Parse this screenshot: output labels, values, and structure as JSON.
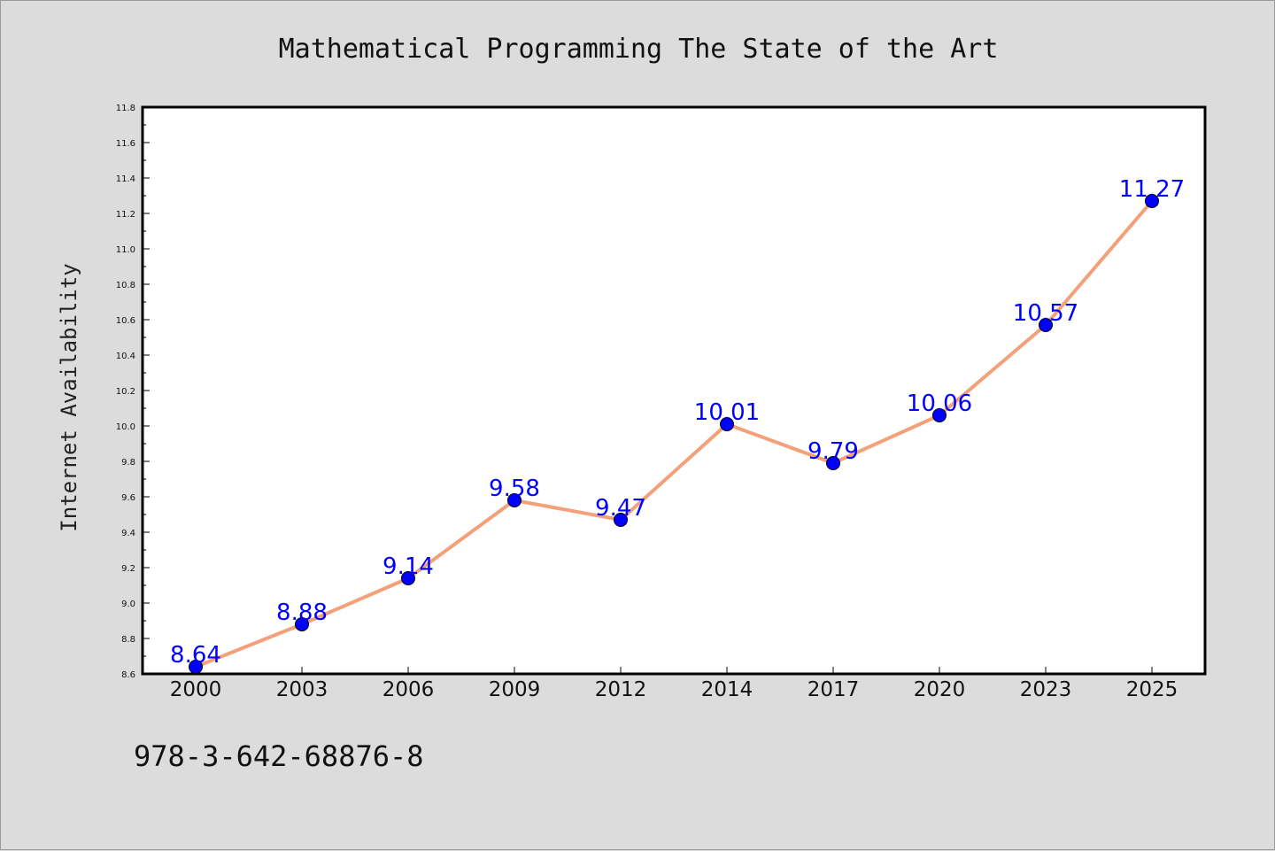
{
  "chart_data": {
    "type": "line",
    "title": "Mathematical Programming The State of the Art",
    "ylabel": "Internet Availability",
    "xlabel": "",
    "categories": [
      "2000",
      "2003",
      "2006",
      "2009",
      "2012",
      "2014",
      "2017",
      "2020",
      "2023",
      "2025"
    ],
    "values": [
      8.64,
      8.88,
      9.14,
      9.58,
      9.47,
      10.01,
      9.79,
      10.06,
      10.57,
      11.27
    ],
    "data_labels": [
      "8.64",
      "8.88",
      "9.14",
      "9.58",
      "9.47",
      "10.01",
      "9.79",
      "10.06",
      "10.57",
      "11.27"
    ],
    "ylim": [
      8.6,
      11.8
    ],
    "yticks": [
      "8.6",
      "8.8",
      "9.0",
      "9.2",
      "9.4",
      "9.6",
      "9.8",
      "10.0",
      "10.2",
      "10.4",
      "10.6",
      "10.8",
      "11.0",
      "11.2",
      "11.4",
      "11.6",
      "11.8"
    ],
    "grid": false,
    "line_color": "#f4a07a",
    "marker_color": "#0000ff",
    "label_color": "#0000ff"
  },
  "footer_text": "978-3-642-68876-8"
}
